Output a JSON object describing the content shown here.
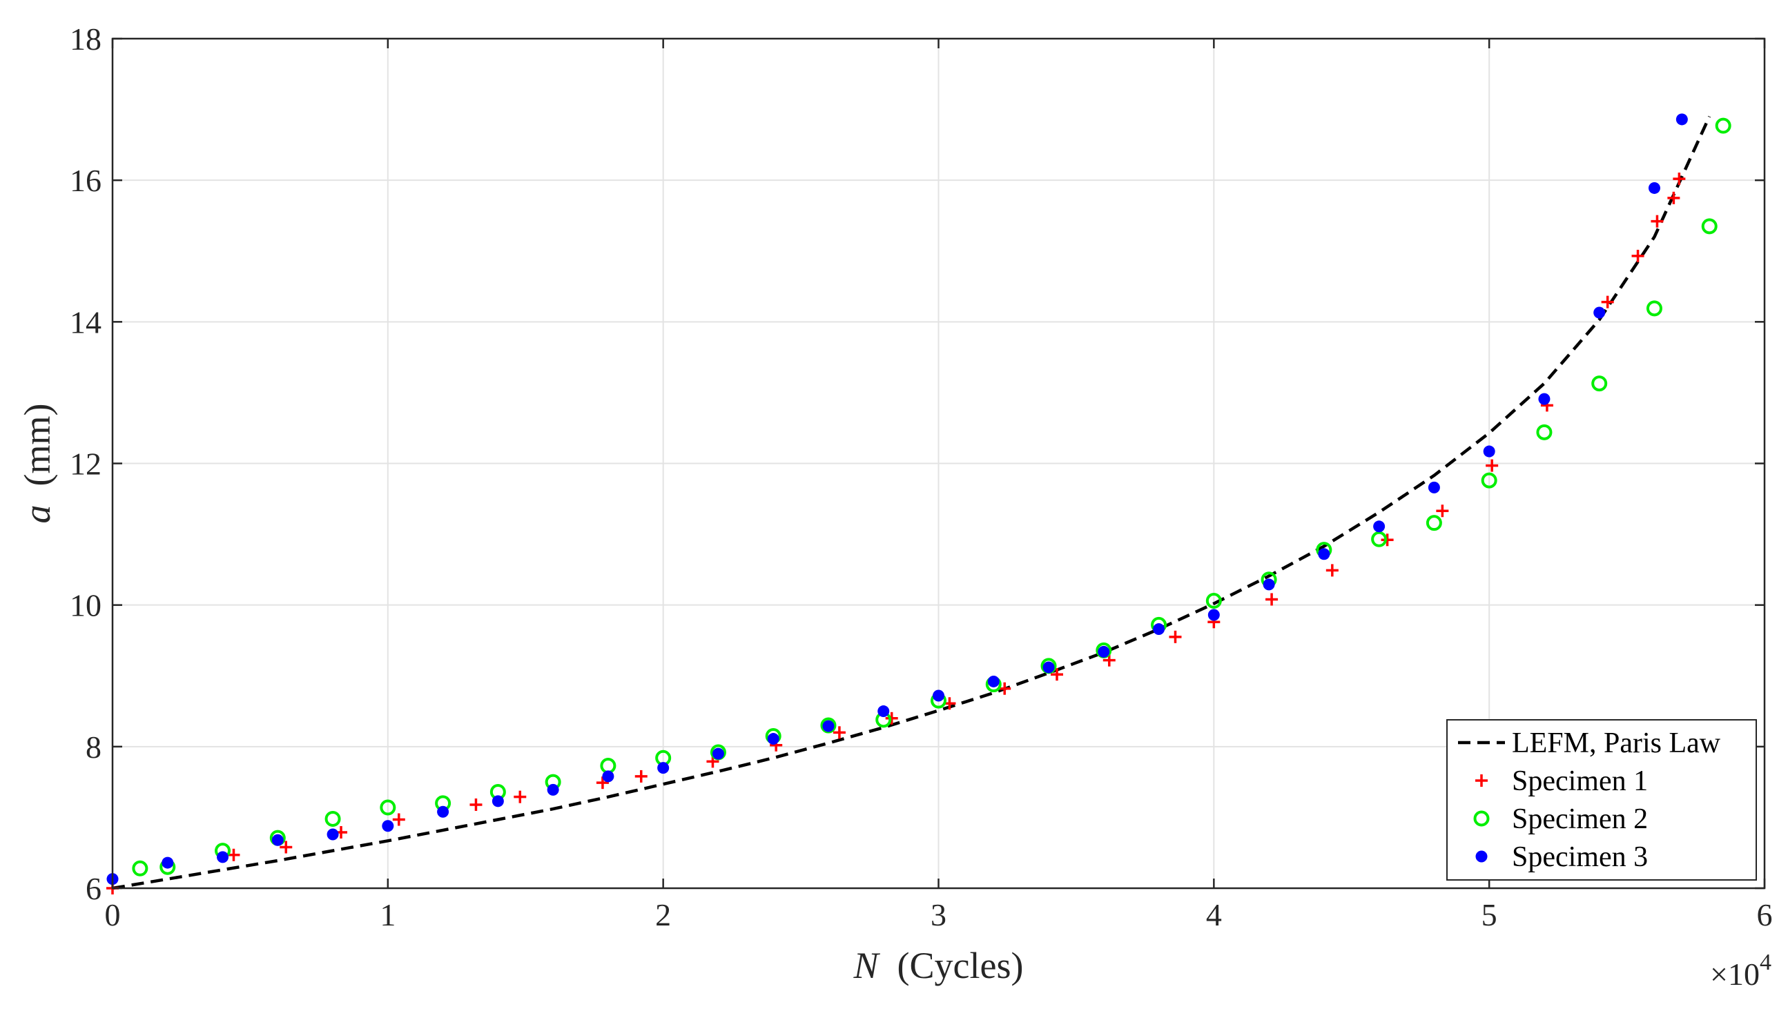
{
  "chart_data": {
    "type": "scatter",
    "title": "",
    "xlabel_var": "N",
    "xlabel_unit": "(Cycles)",
    "ylabel_var": "a",
    "ylabel_unit": "(mm)",
    "x_multiplier_label": "×10",
    "x_multiplier_exponent": "4",
    "x_scale": 10000,
    "xlim": [
      0,
      60000
    ],
    "ylim": [
      6,
      18
    ],
    "x_ticks": [
      0,
      10000,
      20000,
      30000,
      40000,
      50000,
      60000
    ],
    "x_tick_labels": [
      "0",
      "1",
      "2",
      "3",
      "4",
      "5",
      "6"
    ],
    "y_ticks": [
      6,
      8,
      10,
      12,
      14,
      16,
      18
    ],
    "y_tick_labels": [
      "6",
      "8",
      "10",
      "12",
      "14",
      "16",
      "18"
    ],
    "grid": true,
    "legend_position": "bottom-right",
    "colors": {
      "lefm": "#000000",
      "specimen1": "#ff0000",
      "specimen2": "#00ee00",
      "specimen3": "#0000ff",
      "axis": "#262626",
      "grid": "#e3e3e3"
    },
    "series": [
      {
        "name": "LEFM, Paris Law",
        "style": "dashed-line",
        "x": [
          0,
          2000,
          4000,
          6000,
          8000,
          10000,
          12000,
          14000,
          16000,
          18000,
          20000,
          22000,
          24000,
          26000,
          28000,
          30000,
          32000,
          34000,
          36000,
          38000,
          40000,
          42000,
          44000,
          46000,
          48000,
          50000,
          52000,
          54000,
          56000,
          58000
        ],
        "y": [
          6.0,
          6.13,
          6.26,
          6.39,
          6.53,
          6.67,
          6.82,
          6.97,
          7.12,
          7.29,
          7.47,
          7.65,
          7.84,
          8.05,
          8.27,
          8.51,
          8.76,
          9.04,
          9.33,
          9.66,
          10.02,
          10.41,
          10.83,
          11.31,
          11.83,
          12.43,
          13.13,
          14.03,
          15.2,
          16.9
        ]
      },
      {
        "name": "Specimen 1",
        "style": "plus",
        "x": [
          0,
          4400,
          6300,
          8300,
          10400,
          13200,
          14800,
          17800,
          19200,
          21800,
          24100,
          26400,
          28300,
          30400,
          32400,
          34300,
          36200,
          38600,
          40000,
          42100,
          44300,
          46300,
          48300,
          50100,
          52100,
          54300,
          55400,
          56100,
          56700,
          56900
        ],
        "y": [
          6.0,
          6.47,
          6.58,
          6.79,
          6.97,
          7.18,
          7.29,
          7.49,
          7.58,
          7.79,
          8.02,
          8.2,
          8.4,
          8.61,
          8.82,
          9.02,
          9.22,
          9.55,
          9.76,
          10.08,
          10.49,
          10.92,
          11.33,
          11.97,
          12.82,
          14.28,
          14.93,
          15.42,
          15.75,
          16.02
        ]
      },
      {
        "name": "Specimen 2",
        "style": "circle",
        "x": [
          1000,
          2000,
          4000,
          6000,
          8000,
          10000,
          12000,
          14000,
          16000,
          18000,
          20000,
          22000,
          24000,
          26000,
          28000,
          30000,
          32000,
          34000,
          36000,
          38000,
          40000,
          42000,
          44000,
          46000,
          48000,
          50000,
          52000,
          54000,
          56000,
          58000,
          58500
        ],
        "y": [
          6.28,
          6.3,
          6.53,
          6.71,
          6.98,
          7.14,
          7.2,
          7.36,
          7.5,
          7.73,
          7.84,
          7.92,
          8.15,
          8.3,
          8.38,
          8.65,
          8.88,
          9.14,
          9.36,
          9.72,
          10.06,
          10.36,
          10.78,
          10.93,
          11.16,
          11.76,
          12.44,
          13.13,
          14.19,
          15.35,
          16.77
        ]
      },
      {
        "name": "Specimen 3",
        "style": "dot",
        "x": [
          0,
          2000,
          4000,
          6000,
          8000,
          10000,
          12000,
          14000,
          16000,
          18000,
          20000,
          22000,
          24000,
          26000,
          28000,
          30000,
          32000,
          34000,
          36000,
          38000,
          40000,
          42000,
          44000,
          46000,
          48000,
          50000,
          52000,
          54000,
          56000,
          57000
        ],
        "y": [
          6.13,
          6.36,
          6.44,
          6.68,
          6.76,
          6.88,
          7.08,
          7.23,
          7.39,
          7.58,
          7.7,
          7.9,
          8.11,
          8.29,
          8.5,
          8.72,
          8.92,
          9.12,
          9.34,
          9.66,
          9.86,
          10.29,
          10.72,
          11.11,
          11.66,
          12.17,
          12.91,
          14.13,
          15.89,
          16.86
        ]
      }
    ]
  }
}
